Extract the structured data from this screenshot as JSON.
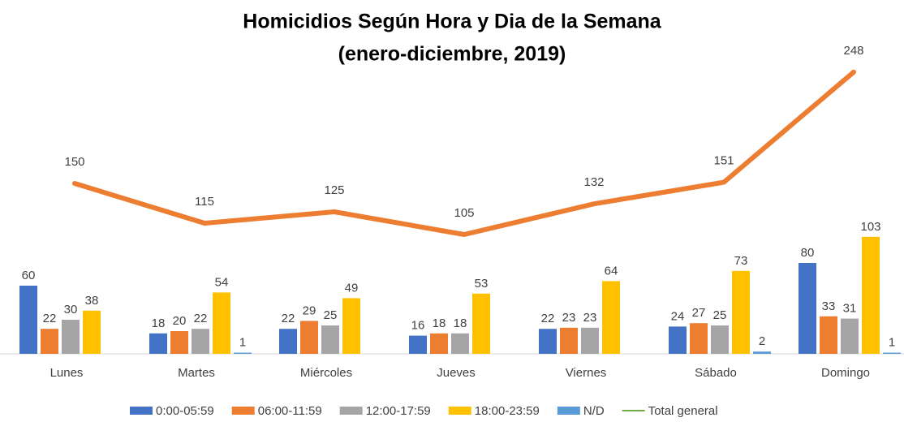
{
  "chart_data": {
    "type": "bar",
    "title": "Homicidios Según Hora y Dia de la Semana",
    "subtitle": "(enero-diciembre, 2019)",
    "categories": [
      "Lunes",
      "Martes",
      "Miércoles",
      "Jueves",
      "Viernes",
      "Sábado",
      "Domingo"
    ],
    "ylim": [
      0,
      260
    ],
    "series": [
      {
        "name": "0:00-05:59",
        "color": "#4472c4",
        "values": [
          60,
          18,
          22,
          16,
          22,
          24,
          80
        ]
      },
      {
        "name": "06:00-11:59",
        "color": "#ed7d31",
        "values": [
          22,
          20,
          29,
          18,
          23,
          27,
          33
        ]
      },
      {
        "name": "12:00-17:59",
        "color": "#a5a5a5",
        "values": [
          30,
          22,
          25,
          18,
          23,
          25,
          31
        ]
      },
      {
        "name": "18:00-23:59",
        "color": "#ffc000",
        "values": [
          38,
          54,
          49,
          53,
          64,
          73,
          103
        ]
      },
      {
        "name": "N/D",
        "color": "#5b9bd5",
        "values": [
          null,
          1,
          null,
          null,
          null,
          2,
          1
        ]
      },
      {
        "name": "Total general",
        "type": "line",
        "color": "#ed7d31",
        "legend_color": "#70ad47",
        "values": [
          150,
          115,
          125,
          105,
          132,
          151,
          248
        ]
      }
    ]
  }
}
